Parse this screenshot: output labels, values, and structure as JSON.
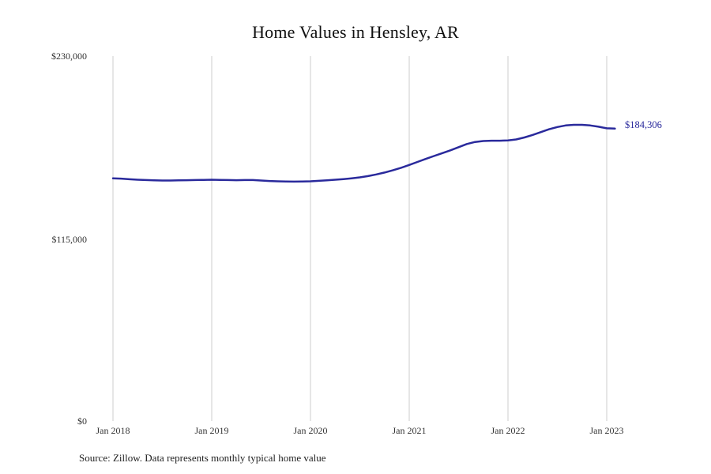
{
  "title": "Home Values in Hensley, AR",
  "end_label": "$184,306",
  "source_note": "Source: Zillow. Data represents monthly typical home value",
  "colors": {
    "line": "#2a2a9c",
    "grid": "#cccccc",
    "end_label": "#2a2a9c"
  },
  "chart_data": {
    "type": "line",
    "title": "Home Values in Hensley, AR",
    "x_start": "Jan 2018",
    "x_interval": "month",
    "x_tick_labels": [
      "Jan 2018",
      "Jan 2019",
      "Jan 2020",
      "Jan 2021",
      "Jan 2022",
      "Jan 2023"
    ],
    "y_tick_labels": [
      "$0",
      "$115,000",
      "$230,000"
    ],
    "ylim": [
      0,
      230000
    ],
    "grid": "vertical-only",
    "legend": "none",
    "end_value": 184306,
    "series": [
      {
        "name": "Monthly typical home value",
        "values": [
          153000,
          152800,
          152400,
          152100,
          151900,
          151700,
          151600,
          151600,
          151700,
          151800,
          151900,
          152000,
          152100,
          152000,
          151900,
          151800,
          151900,
          151900,
          151600,
          151300,
          151100,
          151000,
          150900,
          151000,
          151100,
          151400,
          151700,
          152100,
          152500,
          153000,
          153600,
          154400,
          155400,
          156600,
          158000,
          159600,
          161400,
          163300,
          165200,
          167000,
          168800,
          170600,
          172600,
          174600,
          175900,
          176500,
          176700,
          176700,
          176900,
          177500,
          178700,
          180300,
          182100,
          183900,
          185300,
          186300,
          186700,
          186700,
          186300,
          185500,
          184500,
          184306
        ]
      }
    ]
  }
}
